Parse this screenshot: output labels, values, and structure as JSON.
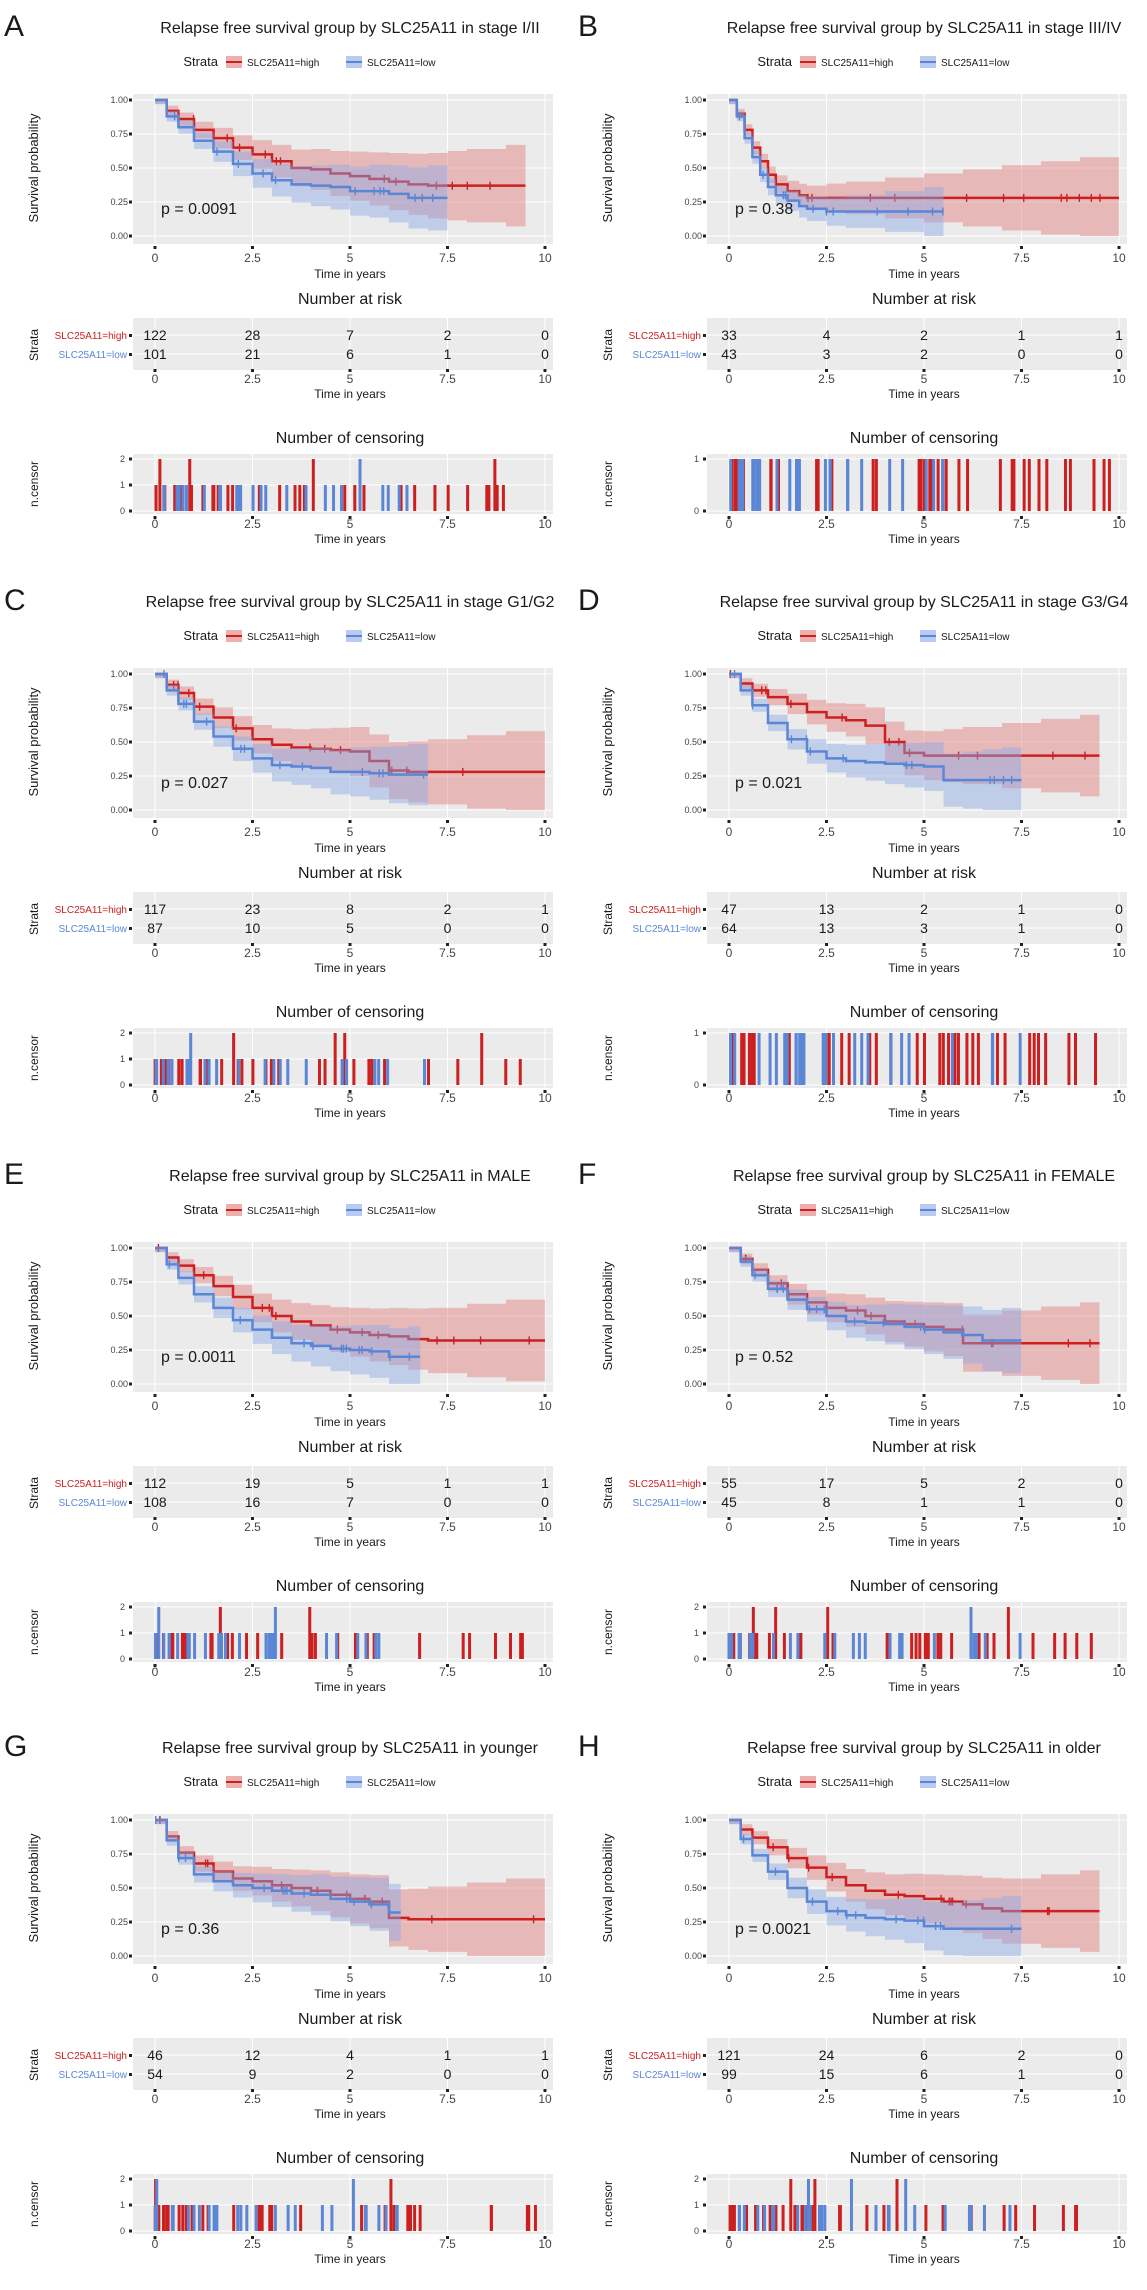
{
  "colors": {
    "high": "#cc1f1f",
    "low": "#5b86d6",
    "high_band": "#e37a7a",
    "low_band": "#8aa8e6",
    "panel_bg": "#ebebeb",
    "grid": "#ffffff",
    "text": "#1a1a1a"
  },
  "common": {
    "strata_label": "Strata",
    "high_label": "SLC25A11=high",
    "low_label": "SLC25A11=low",
    "ylabel_surv": "Survival probability",
    "xlabel": "Time in years",
    "risk_title": "Number at risk",
    "risk_ylabel": "Strata",
    "censor_title": "Number of censoring",
    "censor_ylabel": "n.censor",
    "surv_yticks": [
      "0.00",
      "0.25",
      "0.50",
      "0.75",
      "1.00"
    ],
    "xticks": [
      "0",
      "2.5",
      "5",
      "7.5",
      "10"
    ]
  },
  "chart_data": [
    {
      "type": "line",
      "letter": "A",
      "title": "Relapse free survival group by SLC25A11 in stage I/II",
      "pvalue": "p = 0.0091",
      "xlim": [
        0,
        10
      ],
      "ylim": [
        0,
        1
      ],
      "series": [
        {
          "name": "SLC25A11=high",
          "x": [
            0,
            0.3,
            0.6,
            1,
            1.5,
            2,
            2.5,
            3,
            3.5,
            4,
            4.5,
            5,
            5.5,
            6,
            6.5,
            7,
            7.5,
            8,
            9,
            9.5
          ],
          "y": [
            1,
            0.92,
            0.86,
            0.78,
            0.72,
            0.65,
            0.6,
            0.55,
            0.5,
            0.49,
            0.46,
            0.44,
            0.42,
            0.4,
            0.38,
            0.37,
            0.37,
            0.37,
            0.37,
            0.37
          ]
        },
        {
          "name": "SLC25A11=low",
          "x": [
            0,
            0.3,
            0.6,
            1,
            1.5,
            2,
            2.5,
            3,
            3.5,
            4,
            4.5,
            5,
            5.5,
            6,
            6.5,
            7,
            7.5
          ],
          "y": [
            1,
            0.88,
            0.8,
            0.7,
            0.62,
            0.53,
            0.46,
            0.41,
            0.38,
            0.37,
            0.36,
            0.33,
            0.33,
            0.31,
            0.28,
            0.28,
            0.28
          ]
        }
      ],
      "risk": {
        "high": [
          "122",
          "28",
          "7",
          "2",
          "0"
        ],
        "low": [
          "101",
          "21",
          "6",
          "1",
          "0"
        ]
      }
    },
    {
      "type": "line",
      "letter": "B",
      "title": "Relapse free survival group by SLC25A11 in stage III/IV",
      "pvalue": "p = 0.38",
      "xlim": [
        0,
        10
      ],
      "ylim": [
        0,
        1
      ],
      "series": [
        {
          "name": "SLC25A11=high",
          "x": [
            0,
            0.2,
            0.4,
            0.6,
            0.8,
            1,
            1.2,
            1.5,
            1.8,
            2,
            2.5,
            3,
            4,
            5,
            6,
            7,
            8,
            9,
            10
          ],
          "y": [
            1,
            0.9,
            0.78,
            0.65,
            0.55,
            0.45,
            0.38,
            0.33,
            0.3,
            0.28,
            0.28,
            0.28,
            0.28,
            0.28,
            0.28,
            0.28,
            0.28,
            0.28,
            0.28
          ]
        },
        {
          "name": "SLC25A11=low",
          "x": [
            0,
            0.2,
            0.4,
            0.6,
            0.8,
            1,
            1.2,
            1.5,
            1.8,
            2,
            2.5,
            3,
            4,
            5,
            5.5
          ],
          "y": [
            1,
            0.88,
            0.72,
            0.58,
            0.45,
            0.36,
            0.3,
            0.26,
            0.22,
            0.2,
            0.18,
            0.18,
            0.18,
            0.18,
            0.18
          ]
        }
      ],
      "risk": {
        "high": [
          "33",
          "4",
          "2",
          "1",
          "1"
        ],
        "low": [
          "43",
          "3",
          "2",
          "0",
          "0"
        ]
      }
    },
    {
      "type": "line",
      "letter": "C",
      "title": "Relapse free survival group by SLC25A11 in stage G1/G2",
      "pvalue": "p = 0.027",
      "xlim": [
        0,
        10
      ],
      "ylim": [
        0,
        1
      ],
      "series": [
        {
          "name": "SLC25A11=high",
          "x": [
            0,
            0.3,
            0.6,
            1,
            1.5,
            2,
            2.5,
            3,
            3.5,
            4,
            4.5,
            5,
            5.5,
            6,
            6.5,
            7,
            8,
            9,
            10
          ],
          "y": [
            1,
            0.92,
            0.86,
            0.76,
            0.68,
            0.6,
            0.52,
            0.48,
            0.46,
            0.45,
            0.44,
            0.43,
            0.36,
            0.29,
            0.28,
            0.28,
            0.28,
            0.28,
            0.28
          ]
        },
        {
          "name": "SLC25A11=low",
          "x": [
            0,
            0.3,
            0.6,
            1,
            1.5,
            2,
            2.5,
            3,
            3.5,
            4,
            4.5,
            5,
            5.5,
            6,
            6.5,
            7
          ],
          "y": [
            1,
            0.88,
            0.78,
            0.65,
            0.54,
            0.45,
            0.38,
            0.33,
            0.32,
            0.31,
            0.28,
            0.28,
            0.27,
            0.26,
            0.26,
            0.26
          ]
        }
      ],
      "risk": {
        "high": [
          "117",
          "23",
          "8",
          "2",
          "1"
        ],
        "low": [
          "87",
          "10",
          "5",
          "0",
          "0"
        ]
      }
    },
    {
      "type": "line",
      "letter": "D",
      "title": "Relapse free survival group by SLC25A11 in stage G3/G4",
      "pvalue": "p = 0.021",
      "xlim": [
        0,
        10
      ],
      "ylim": [
        0,
        1
      ],
      "series": [
        {
          "name": "SLC25A11=high",
          "x": [
            0,
            0.3,
            0.6,
            1,
            1.5,
            2,
            2.5,
            3,
            3.5,
            4,
            4.5,
            5,
            5.5,
            6,
            7,
            8,
            9,
            9.5
          ],
          "y": [
            1,
            0.93,
            0.88,
            0.83,
            0.78,
            0.72,
            0.68,
            0.66,
            0.62,
            0.5,
            0.42,
            0.4,
            0.4,
            0.4,
            0.4,
            0.4,
            0.4,
            0.4
          ]
        },
        {
          "name": "SLC25A11=low",
          "x": [
            0,
            0.3,
            0.6,
            1,
            1.5,
            2,
            2.5,
            3,
            3.5,
            4,
            4.5,
            5,
            5.5,
            6,
            6.5,
            7,
            7.5
          ],
          "y": [
            1,
            0.88,
            0.77,
            0.64,
            0.52,
            0.43,
            0.38,
            0.36,
            0.35,
            0.34,
            0.33,
            0.32,
            0.22,
            0.22,
            0.22,
            0.22,
            0.22
          ]
        }
      ],
      "risk": {
        "high": [
          "47",
          "13",
          "2",
          "1",
          "0"
        ],
        "low": [
          "64",
          "13",
          "3",
          "1",
          "0"
        ]
      }
    },
    {
      "type": "line",
      "letter": "E",
      "title": "Relapse free survival group by SLC25A11 in MALE",
      "pvalue": "p = 0.0011",
      "xlim": [
        0,
        10
      ],
      "ylim": [
        0,
        1
      ],
      "series": [
        {
          "name": "SLC25A11=high",
          "x": [
            0,
            0.3,
            0.6,
            1,
            1.5,
            2,
            2.5,
            3,
            3.5,
            4,
            4.5,
            5,
            5.5,
            6,
            6.5,
            7,
            8,
            9,
            10
          ],
          "y": [
            1,
            0.93,
            0.87,
            0.8,
            0.72,
            0.64,
            0.56,
            0.5,
            0.46,
            0.43,
            0.4,
            0.38,
            0.36,
            0.35,
            0.33,
            0.32,
            0.32,
            0.32,
            0.32
          ]
        },
        {
          "name": "SLC25A11=low",
          "x": [
            0,
            0.3,
            0.6,
            1,
            1.5,
            2,
            2.5,
            3,
            3.5,
            4,
            4.5,
            5,
            5.5,
            6,
            6.5,
            6.8
          ],
          "y": [
            1,
            0.88,
            0.78,
            0.66,
            0.56,
            0.47,
            0.4,
            0.34,
            0.3,
            0.28,
            0.26,
            0.25,
            0.24,
            0.2,
            0.2,
            0.2
          ]
        }
      ],
      "risk": {
        "high": [
          "112",
          "19",
          "5",
          "1",
          "1"
        ],
        "low": [
          "108",
          "16",
          "7",
          "0",
          "0"
        ]
      }
    },
    {
      "type": "line",
      "letter": "F",
      "title": "Relapse free survival group by SLC25A11 in FEMALE",
      "pvalue": "p = 0.52",
      "xlim": [
        0,
        10
      ],
      "ylim": [
        0,
        1
      ],
      "series": [
        {
          "name": "SLC25A11=high",
          "x": [
            0,
            0.3,
            0.6,
            1,
            1.5,
            2,
            2.5,
            3,
            3.5,
            4,
            4.5,
            5,
            5.5,
            6,
            7,
            8,
            9,
            9.5
          ],
          "y": [
            1,
            0.92,
            0.84,
            0.74,
            0.66,
            0.6,
            0.56,
            0.54,
            0.5,
            0.46,
            0.44,
            0.42,
            0.4,
            0.3,
            0.3,
            0.3,
            0.3,
            0.3
          ]
        },
        {
          "name": "SLC25A11=low",
          "x": [
            0,
            0.3,
            0.6,
            1,
            1.5,
            2,
            2.5,
            3,
            3.5,
            4,
            4.5,
            5,
            5.5,
            6,
            6.5,
            7,
            7.5
          ],
          "y": [
            1,
            0.9,
            0.8,
            0.7,
            0.62,
            0.55,
            0.5,
            0.46,
            0.45,
            0.44,
            0.42,
            0.4,
            0.38,
            0.36,
            0.32,
            0.32,
            0.32
          ]
        }
      ],
      "risk": {
        "high": [
          "55",
          "17",
          "5",
          "2",
          "0"
        ],
        "low": [
          "45",
          "8",
          "1",
          "1",
          "0"
        ]
      }
    },
    {
      "type": "line",
      "letter": "G",
      "title": "Relapse free survival group by SLC25A11 in younger",
      "pvalue": "p = 0.36",
      "xlim": [
        0,
        10
      ],
      "ylim": [
        0,
        1
      ],
      "series": [
        {
          "name": "SLC25A11=high",
          "x": [
            0,
            0.3,
            0.6,
            1,
            1.5,
            2,
            2.5,
            3,
            3.5,
            4,
            4.5,
            5,
            5.5,
            6,
            6.5,
            7,
            8,
            9,
            10
          ],
          "y": [
            1,
            0.88,
            0.76,
            0.68,
            0.62,
            0.57,
            0.55,
            0.52,
            0.5,
            0.48,
            0.45,
            0.42,
            0.4,
            0.28,
            0.27,
            0.27,
            0.27,
            0.27,
            0.27
          ]
        },
        {
          "name": "SLC25A11=low",
          "x": [
            0,
            0.3,
            0.6,
            1,
            1.5,
            2,
            2.5,
            3,
            3.5,
            4,
            4.5,
            5,
            5.5,
            6,
            6.3
          ],
          "y": [
            1,
            0.85,
            0.72,
            0.6,
            0.55,
            0.52,
            0.5,
            0.48,
            0.46,
            0.45,
            0.42,
            0.4,
            0.38,
            0.32,
            0.32
          ]
        }
      ],
      "risk": {
        "high": [
          "46",
          "12",
          "4",
          "1",
          "1"
        ],
        "low": [
          "54",
          "9",
          "2",
          "0",
          "0"
        ]
      }
    },
    {
      "type": "line",
      "letter": "H",
      "title": "Relapse free survival group by SLC25A11 in older",
      "pvalue": "p = 0.0021",
      "xlim": [
        0,
        10
      ],
      "ylim": [
        0,
        1
      ],
      "series": [
        {
          "name": "SLC25A11=high",
          "x": [
            0,
            0.3,
            0.6,
            1,
            1.5,
            2,
            2.5,
            3,
            3.5,
            4,
            4.5,
            5,
            5.5,
            6,
            6.5,
            7,
            8,
            9,
            9.5
          ],
          "y": [
            1,
            0.93,
            0.87,
            0.8,
            0.72,
            0.65,
            0.58,
            0.52,
            0.48,
            0.45,
            0.44,
            0.42,
            0.4,
            0.38,
            0.35,
            0.33,
            0.33,
            0.33,
            0.33
          ]
        },
        {
          "name": "SLC25A11=low",
          "x": [
            0,
            0.3,
            0.6,
            1,
            1.5,
            2,
            2.5,
            3,
            3.5,
            4,
            4.5,
            5,
            5.5,
            6,
            6.5,
            7,
            7.5
          ],
          "y": [
            1,
            0.86,
            0.74,
            0.62,
            0.5,
            0.4,
            0.33,
            0.3,
            0.28,
            0.27,
            0.26,
            0.22,
            0.2,
            0.2,
            0.2,
            0.2,
            0.2
          ]
        }
      ],
      "risk": {
        "high": [
          "121",
          "24",
          "6",
          "2",
          "0"
        ],
        "low": [
          "99",
          "15",
          "6",
          "1",
          "0"
        ]
      }
    }
  ]
}
